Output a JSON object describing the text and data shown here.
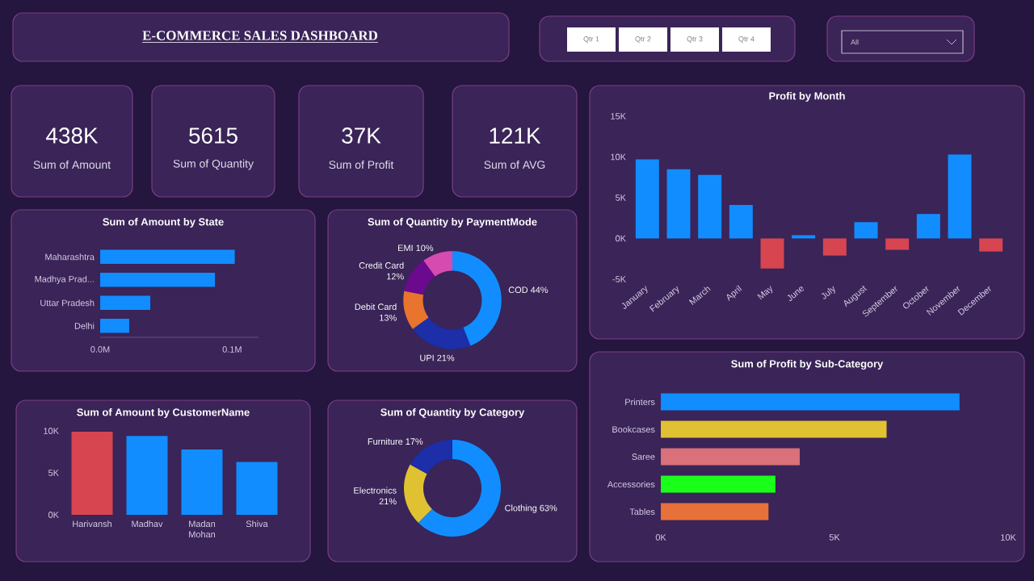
{
  "chart_data": [
    {
      "type": "other",
      "title": "E-COMMERCE SALES DASHBOARD",
      "annotations": [
        "Qtr 1",
        "Qtr 2",
        "Qtr 3",
        "Qtr 4",
        "All"
      ]
    },
    {
      "type": "other",
      "annotations": [
        "438K",
        "Sum of Amount",
        "5615",
        "Sum of Quantity",
        "37K",
        "Sum of Profit",
        "121K",
        "Sum of AVG"
      ]
    },
    {
      "type": "bar",
      "orientation": "horizontal",
      "title": "Sum of Amount by State",
      "categories": [
        "Maharashtra",
        "Madhya Prad...",
        "Uttar Pradesh",
        "Delhi"
      ],
      "values": [
        102000,
        87000,
        38000,
        22000
      ],
      "color": "#118dff",
      "xlim": [
        0,
        120000
      ],
      "xticks": [
        {
          "value": 0,
          "label": "0.0M"
        },
        {
          "value": 100000,
          "label": "0.1M"
        }
      ]
    },
    {
      "type": "donut",
      "title": "Sum of Quantity by PaymentMode",
      "categories": [
        "COD",
        "UPI",
        "Debit Card",
        "Credit Card",
        "EMI"
      ],
      "values": [
        44,
        21,
        13,
        12,
        10
      ],
      "value_labels": [
        "44%",
        "21%",
        "13%",
        "12%",
        "10%"
      ],
      "colors": [
        "#118dff",
        "#1c2ea8",
        "#e8742e",
        "#6b0a8e",
        "#d64bb0"
      ]
    },
    {
      "type": "bar",
      "title": "Profit by Month",
      "categories": [
        "January",
        "February",
        "March",
        "April",
        "May",
        "June",
        "July",
        "August",
        "September",
        "October",
        "November",
        "December"
      ],
      "values": [
        9700,
        8500,
        7800,
        4100,
        -3700,
        400,
        -2100,
        2000,
        -1400,
        3000,
        10300,
        -1600
      ],
      "colors": [
        "#118dff",
        "#118dff",
        "#118dff",
        "#118dff",
        "#d64550",
        "#118dff",
        "#d64550",
        "#118dff",
        "#d64550",
        "#118dff",
        "#118dff",
        "#d64550"
      ],
      "ylim": [
        -5000,
        15000
      ],
      "yticks": [
        {
          "value": -5000,
          "label": "-5K"
        },
        {
          "value": 0,
          "label": "0K"
        },
        {
          "value": 5000,
          "label": "5K"
        },
        {
          "value": 10000,
          "label": "10K"
        },
        {
          "value": 15000,
          "label": "15K"
        }
      ]
    },
    {
      "type": "bar",
      "title": "Sum of Amount by CustomerName",
      "categories": [
        "Harivansh",
        "Madhav",
        "Madan Mohan",
        "Shiva"
      ],
      "values": [
        9900,
        9400,
        7800,
        6300
      ],
      "colors": [
        "#d64550",
        "#118dff",
        "#118dff",
        "#118dff"
      ],
      "ylim": [
        0,
        10000
      ],
      "yticks": [
        {
          "value": 0,
          "label": "0K"
        },
        {
          "value": 5000,
          "label": "5K"
        },
        {
          "value": 10000,
          "label": "10K"
        }
      ]
    },
    {
      "type": "donut",
      "title": "Sum of Quantity by Category",
      "categories": [
        "Clothing",
        "Electronics",
        "Furniture"
      ],
      "values": [
        63,
        21,
        17
      ],
      "value_labels": [
        "63%",
        "21%",
        "17%"
      ],
      "colors": [
        "#118dff",
        "#e0c132",
        "#1c2ea8"
      ]
    },
    {
      "type": "bar",
      "orientation": "horizontal",
      "title": "Sum of Profit by Sub-Category",
      "categories": [
        "Printers",
        "Bookcases",
        "Saree",
        "Accessories",
        "Tables"
      ],
      "values": [
        8600,
        6500,
        4000,
        3300,
        3100
      ],
      "colors": [
        "#118dff",
        "#e0c132",
        "#d9707a",
        "#1aff1a",
        "#e8703a"
      ],
      "xlim": [
        0,
        10000
      ],
      "xticks": [
        {
          "value": 0,
          "label": "0K"
        },
        {
          "value": 5000,
          "label": "5K"
        },
        {
          "value": 10000,
          "label": "10K"
        }
      ]
    }
  ]
}
